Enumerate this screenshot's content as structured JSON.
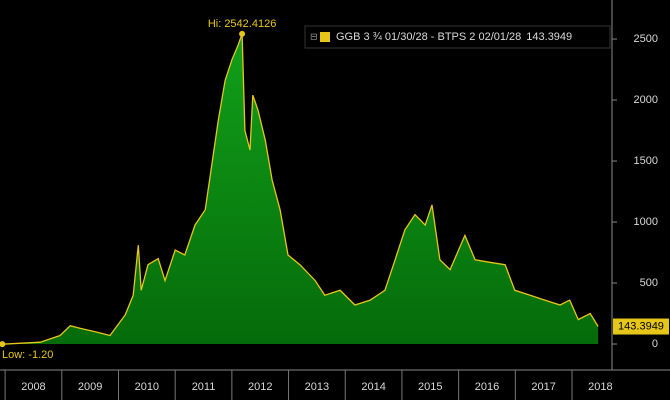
{
  "chart_data": {
    "type": "area",
    "series": [
      {
        "name": "GGB 3 ¾ 01/30/28 - BTPS 2 02/01/28",
        "color": "#e6c619",
        "fill": "#0a8a12",
        "x": [
          2007.95,
          2008.62,
          2008.97,
          2009.15,
          2009.32,
          2009.59,
          2009.85,
          2010.12,
          2010.26,
          2010.35,
          2010.4,
          2010.52,
          2010.7,
          2010.82,
          2011.0,
          2011.17,
          2011.35,
          2011.53,
          2011.62,
          2011.76,
          2011.88,
          2012.0,
          2012.11,
          2012.18,
          2012.23,
          2012.32,
          2012.37,
          2012.46,
          2012.59,
          2012.71,
          2012.85,
          2012.99,
          2013.2,
          2013.47,
          2013.64,
          2013.91,
          2014.17,
          2014.44,
          2014.7,
          2014.88,
          2015.05,
          2015.23,
          2015.41,
          2015.53,
          2015.67,
          2015.85,
          2016.11,
          2016.29,
          2016.55,
          2016.82,
          2016.99,
          2017.26,
          2017.52,
          2017.79,
          2017.96,
          2018.11,
          2018.32,
          2018.46
        ],
        "values": [
          -1.2,
          15,
          70,
          150,
          130,
          100,
          70,
          240,
          400,
          810,
          440,
          650,
          700,
          520,
          770,
          730,
          975,
          1100,
          1385,
          1835,
          2160,
          2330,
          2450,
          2542.4126,
          1750,
          1590,
          2040,
          1920,
          1670,
          1345,
          1100,
          730,
          650,
          520,
          400,
          440,
          320,
          360,
          440,
          690,
          935,
          1060,
          975,
          1140,
          690,
          610,
          890,
          690,
          670,
          650,
          440,
          400,
          360,
          320,
          360,
          200,
          250,
          143.3949
        ]
      }
    ],
    "hi_label": "Hi: 2542.4126",
    "low_label": "Low: -1.20",
    "last_label": "143.3949",
    "xlim": [
      2007.91,
      2018.67
    ],
    "xticks": [
      {
        "value": 2008.5,
        "label": "2008"
      },
      {
        "value": 2009.5,
        "label": "2009"
      },
      {
        "value": 2010.5,
        "label": "2010"
      },
      {
        "value": 2011.5,
        "label": "2011"
      },
      {
        "value": 2012.5,
        "label": "2012"
      },
      {
        "value": 2013.5,
        "label": "2013"
      },
      {
        "value": 2014.5,
        "label": "2014"
      },
      {
        "value": 2015.5,
        "label": "2015"
      },
      {
        "value": 2016.5,
        "label": "2016"
      },
      {
        "value": 2017.5,
        "label": "2017"
      },
      {
        "value": 2018.5,
        "label": "2018"
      }
    ],
    "ylim": [
      -213,
      2820
    ],
    "yticks": [
      0,
      500,
      1000,
      1500,
      2000,
      2500
    ],
    "grid": false
  }
}
